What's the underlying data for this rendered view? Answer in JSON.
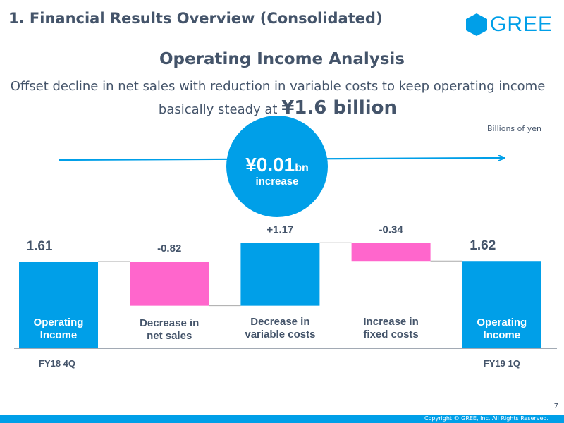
{
  "header": {
    "section_title": "1. Financial Results Overview (Consolidated)",
    "logo_text": "GREE"
  },
  "main_title": "Operating Income Analysis",
  "subtitle": {
    "line1": "Offset decline in net sales with reduction in variable costs to keep operating income",
    "line2_prefix": "basically steady at ",
    "line2_highlight": "¥1.6 billion"
  },
  "units_label": "Billions of yen",
  "change_badge": {
    "value": "¥0.01",
    "unit": "bn",
    "label": "increase"
  },
  "chart_data": {
    "type": "waterfall",
    "title": "Operating Income Analysis",
    "units": "Billions of yen",
    "steps": [
      {
        "name": "Operating Income",
        "period": "FY18 4Q",
        "value": 1.61,
        "label": "1.61",
        "kind": "total"
      },
      {
        "name": "Decrease in net sales",
        "value": -0.82,
        "label": "-0.82",
        "kind": "delta"
      },
      {
        "name": "Decrease in variable costs",
        "value": 1.17,
        "label": "+1.17",
        "kind": "delta"
      },
      {
        "name": "Increase in fixed costs",
        "value": -0.34,
        "label": "-0.34",
        "kind": "delta"
      },
      {
        "name": "Operating Income",
        "period": "FY19 1Q",
        "value": 1.62,
        "label": "1.62",
        "kind": "total"
      }
    ],
    "colors": {
      "total": "#009fe8",
      "increase": "#009fe8",
      "decrease": "#ff66cc",
      "text": "#44546a",
      "connector": "#aaaaaa",
      "axis": "#44546a"
    }
  },
  "footer": {
    "copyright": "Copyright © GREE, Inc. All Rights Reserved.",
    "page_number": "7"
  }
}
